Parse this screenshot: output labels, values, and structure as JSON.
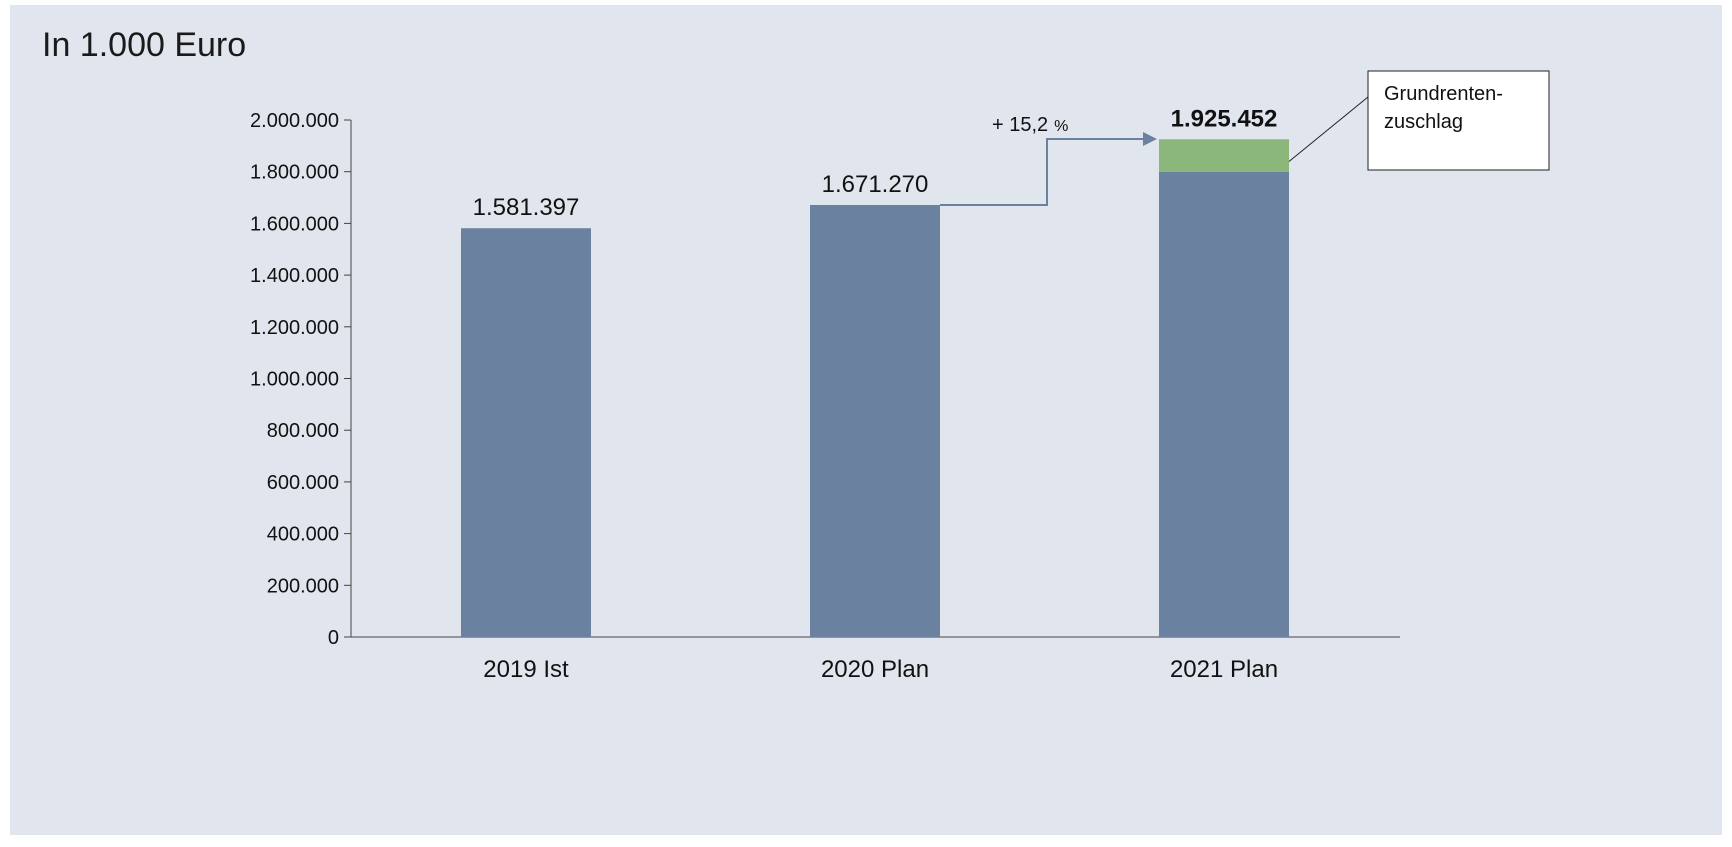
{
  "unit_label": "In 1.000 Euro",
  "chart_data": {
    "type": "bar",
    "title": "",
    "categories": [
      "2019 Ist",
      "2020 Plan",
      "2021 Plan"
    ],
    "series": [
      {
        "values": [
          1581397,
          1671270,
          1800000
        ],
        "color": "#6a829f"
      },
      {
        "name": "Grundrenten-zuschlag",
        "values": [
          0,
          0,
          125452
        ],
        "color": "#8cb77a"
      }
    ],
    "totals": [
      1581397,
      1671270,
      1925452
    ],
    "value_labels": [
      "1.581.397",
      "1.671.270",
      "1.925.452"
    ],
    "ylim": [
      0,
      2000000
    ],
    "yticks": [
      0,
      200000,
      400000,
      600000,
      800000,
      1000000,
      1200000,
      1400000,
      1600000,
      1800000,
      2000000
    ],
    "ytick_labels": [
      "0",
      "200.000",
      "400.000",
      "600.000",
      "800.000",
      "1.000.000",
      "1.200.000",
      "1.400.000",
      "1.600.000",
      "1.800.000",
      "2.000.000"
    ],
    "grid": false,
    "change_annotation": {
      "from_category": "2020 Plan",
      "to_category": "2021 Plan",
      "text": "+ 15,2",
      "unit": "%"
    },
    "callout": {
      "lines": [
        "Grundrenten-",
        "zuschlag"
      ],
      "target_series": "Grundrenten-zuschlag",
      "placement": "top-right"
    }
  }
}
